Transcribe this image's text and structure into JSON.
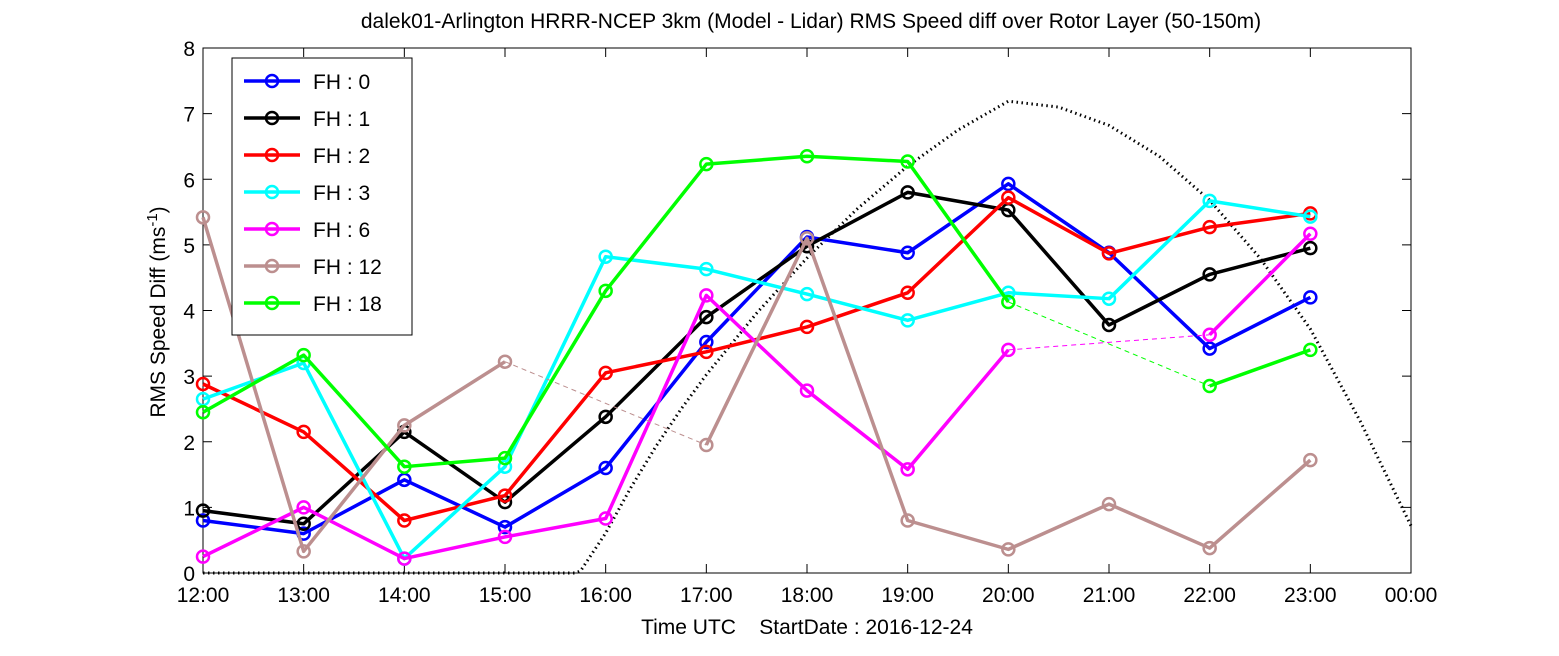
{
  "chart_data": {
    "type": "line",
    "title": "dalek01-Arlington HRRR-NCEP 3km (Model - Lidar) RMS Speed diff over Rotor Layer (50-150m)",
    "xlabel": "Time UTC    StartDate : 2016-12-24",
    "ylabel_main": "RMS Speed Diff (ms",
    "ylabel_sup": "-1",
    "ylabel_tail": ")",
    "x_ticks": [
      "12:00",
      "13:00",
      "14:00",
      "15:00",
      "16:00",
      "17:00",
      "18:00",
      "19:00",
      "20:00",
      "21:00",
      "22:00",
      "23:00",
      "00:00"
    ],
    "y_ticks": [
      "0",
      "1",
      "2",
      "3",
      "4",
      "5",
      "6",
      "7",
      "8"
    ],
    "xlim": [
      "12:00",
      "00:00"
    ],
    "ylim": [
      0,
      8
    ],
    "grid": false,
    "legend_position": "top-left",
    "series": [
      {
        "name": "FH : 0",
        "color": "#0000ff",
        "points": [
          [
            "12:00",
            0.8
          ],
          [
            "13:00",
            0.6
          ],
          [
            "14:00",
            1.42
          ],
          [
            "15:00",
            0.7
          ],
          [
            "16:00",
            1.6
          ],
          [
            "17:00",
            3.52
          ],
          [
            "18:00",
            5.12
          ],
          [
            "19:00",
            4.88
          ],
          [
            "20:00",
            5.93
          ],
          [
            "21:00",
            4.88
          ],
          [
            "22:00",
            3.42
          ],
          [
            "23:00",
            4.2
          ]
        ],
        "gaps": []
      },
      {
        "name": "FH : 1",
        "color": "#000000",
        "points": [
          [
            "12:00",
            0.95
          ],
          [
            "13:00",
            0.75
          ],
          [
            "14:00",
            2.15
          ],
          [
            "15:00",
            1.08
          ],
          [
            "16:00",
            2.38
          ],
          [
            "17:00",
            3.9
          ],
          [
            "18:00",
            4.98
          ],
          [
            "19:00",
            5.8
          ],
          [
            "20:00",
            5.53
          ],
          [
            "21:00",
            3.78
          ],
          [
            "22:00",
            4.55
          ],
          [
            "23:00",
            4.95
          ]
        ],
        "gaps": []
      },
      {
        "name": "FH : 2",
        "color": "#ff0000",
        "points": [
          [
            "12:00",
            2.88
          ],
          [
            "13:00",
            2.15
          ],
          [
            "14:00",
            0.8
          ],
          [
            "15:00",
            1.18
          ],
          [
            "16:00",
            3.05
          ],
          [
            "17:00",
            3.37
          ],
          [
            "18:00",
            3.75
          ],
          [
            "19:00",
            4.27
          ],
          [
            "20:00",
            5.72
          ],
          [
            "21:00",
            4.87
          ],
          [
            "22:00",
            5.27
          ],
          [
            "23:00",
            5.48
          ]
        ],
        "gaps": []
      },
      {
        "name": "FH : 3",
        "color": "#00ffff",
        "points": [
          [
            "12:00",
            2.65
          ],
          [
            "13:00",
            3.2
          ],
          [
            "14:00",
            0.22
          ],
          [
            "15:00",
            1.62
          ],
          [
            "16:00",
            4.82
          ],
          [
            "17:00",
            4.63
          ],
          [
            "18:00",
            4.25
          ],
          [
            "19:00",
            3.85
          ],
          [
            "20:00",
            4.27
          ],
          [
            "21:00",
            4.18
          ],
          [
            "22:00",
            5.67
          ],
          [
            "23:00",
            5.43
          ]
        ],
        "gaps": []
      },
      {
        "name": "FH : 6",
        "color": "#ff00ff",
        "points": [
          [
            "12:00",
            0.25
          ],
          [
            "13:00",
            1.0
          ],
          [
            "14:00",
            0.22
          ],
          [
            "15:00",
            0.55
          ],
          [
            "16:00",
            0.83
          ],
          [
            "17:00",
            4.23
          ],
          [
            "18:00",
            2.78
          ],
          [
            "19:00",
            1.58
          ],
          [
            "20:00",
            3.4
          ],
          [
            "22:00",
            3.63
          ],
          [
            "23:00",
            5.17
          ]
        ],
        "gaps": [
          [
            8,
            9
          ]
        ]
      },
      {
        "name": "FH : 12",
        "color": "#bc8f8f",
        "points": [
          [
            "12:00",
            5.42
          ],
          [
            "13:00",
            0.33
          ],
          [
            "14:00",
            2.25
          ],
          [
            "15:00",
            3.22
          ],
          [
            "17:00",
            1.95
          ],
          [
            "18:00",
            5.1
          ],
          [
            "19:00",
            0.8
          ],
          [
            "20:00",
            0.36
          ],
          [
            "21:00",
            1.05
          ],
          [
            "22:00",
            0.38
          ],
          [
            "23:00",
            1.72
          ]
        ],
        "gaps": [
          [
            3,
            4
          ]
        ]
      },
      {
        "name": "FH : 18",
        "color": "#00ff00",
        "points": [
          [
            "12:00",
            2.45
          ],
          [
            "13:00",
            3.32
          ],
          [
            "14:00",
            1.62
          ],
          [
            "15:00",
            1.75
          ],
          [
            "16:00",
            4.3
          ],
          [
            "17:00",
            6.23
          ],
          [
            "18:00",
            6.35
          ],
          [
            "19:00",
            6.27
          ],
          [
            "20:00",
            4.13
          ],
          [
            "22:00",
            2.85
          ],
          [
            "23:00",
            3.4
          ]
        ],
        "gaps": [
          [
            8,
            9
          ]
        ]
      }
    ],
    "reference_curve": {
      "style": "dotted",
      "color": "#000000",
      "points": [
        [
          "12:00",
          0
        ],
        [
          "15:42",
          0
        ],
        [
          "15:45",
          0.03
        ],
        [
          "16:00",
          0.61
        ],
        [
          "16:15",
          1.3
        ],
        [
          "16:30",
          1.93
        ],
        [
          "16:45",
          2.5
        ],
        [
          "17:00",
          3.02
        ],
        [
          "17:30",
          3.96
        ],
        [
          "18:00",
          4.8
        ],
        [
          "18:30",
          5.55
        ],
        [
          "19:00",
          6.2
        ],
        [
          "19:30",
          6.75
        ],
        [
          "20:00",
          7.19
        ],
        [
          "20:30",
          7.1
        ],
        [
          "21:00",
          6.82
        ],
        [
          "21:30",
          6.35
        ],
        [
          "22:00",
          5.68
        ],
        [
          "22:30",
          4.8
        ],
        [
          "23:00",
          3.72
        ],
        [
          "23:30",
          2.3
        ],
        [
          "00:00",
          0.72
        ]
      ]
    }
  }
}
